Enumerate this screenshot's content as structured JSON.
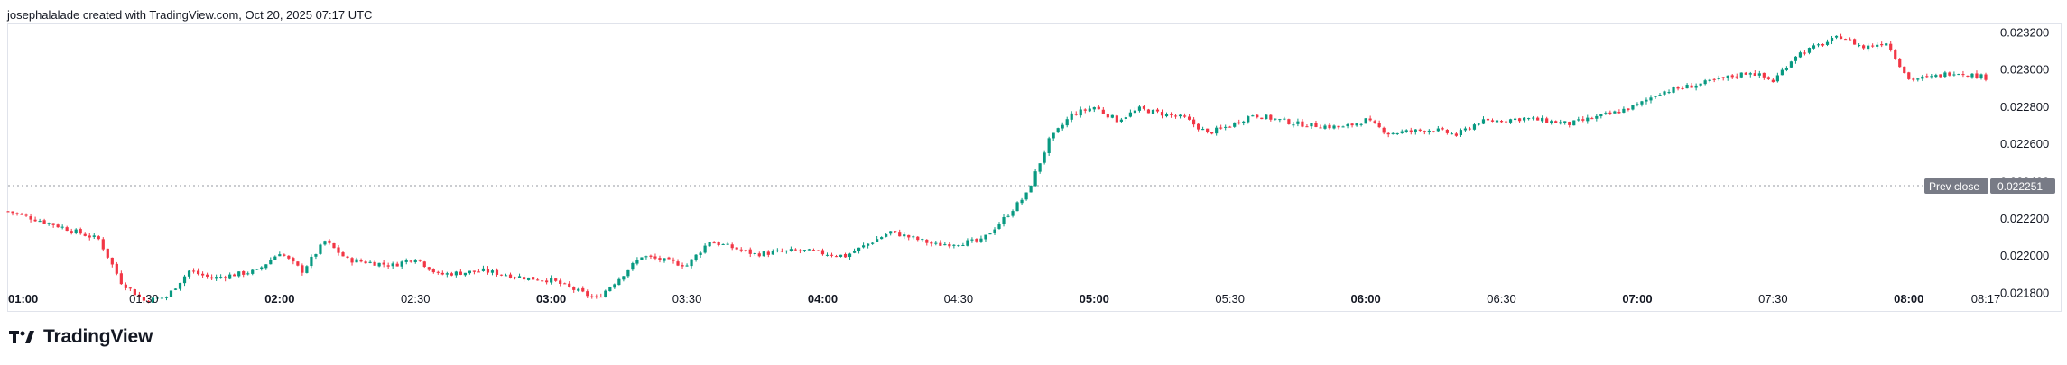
{
  "header": {
    "attribution": "josephalalade created with TradingView.com, Oct 20, 2025 07:17 UTC"
  },
  "brand": {
    "name": "TradingView"
  },
  "colors": {
    "up": "#089981",
    "down": "#f23645",
    "prev_close_badge": "#787b86",
    "grid_border": "#e0e3eb"
  },
  "chart_data": {
    "type": "candlestick",
    "x_ticks": [
      {
        "label": "01:00",
        "bold": true
      },
      {
        "label": "01:30",
        "bold": false
      },
      {
        "label": "02:00",
        "bold": true
      },
      {
        "label": "02:30",
        "bold": false
      },
      {
        "label": "03:00",
        "bold": true
      },
      {
        "label": "03:30",
        "bold": false
      },
      {
        "label": "04:00",
        "bold": true
      },
      {
        "label": "04:30",
        "bold": false
      },
      {
        "label": "05:00",
        "bold": true
      },
      {
        "label": "05:30",
        "bold": false
      },
      {
        "label": "06:00",
        "bold": true
      },
      {
        "label": "06:30",
        "bold": false
      },
      {
        "label": "07:00",
        "bold": true
      },
      {
        "label": "07:30",
        "bold": false
      },
      {
        "label": "08:00",
        "bold": true
      },
      {
        "label": "08:17",
        "bold": false
      }
    ],
    "y_ticks": [
      "0.023200",
      "0.023000",
      "0.022800",
      "0.022600",
      "0.022400",
      "0.022200",
      "0.022000",
      "0.021800"
    ],
    "y_range": [
      0.0217,
      0.02325
    ],
    "prev_close": {
      "label": "Prev close",
      "value": "0.022251"
    },
    "close_path": [
      [
        "01:00",
        0.02224
      ],
      [
        "01:10",
        0.02217
      ],
      [
        "01:20",
        0.02209
      ],
      [
        "01:25",
        0.02186
      ],
      [
        "01:30",
        0.02176
      ],
      [
        "01:35",
        0.02178
      ],
      [
        "01:40",
        0.02192
      ],
      [
        "01:45",
        0.02188
      ],
      [
        "01:55",
        0.02192
      ],
      [
        "02:00",
        0.02202
      ],
      [
        "02:05",
        0.02192
      ],
      [
        "02:10",
        0.02208
      ],
      [
        "02:15",
        0.02198
      ],
      [
        "02:25",
        0.02195
      ],
      [
        "02:30",
        0.02199
      ],
      [
        "02:35",
        0.0219
      ],
      [
        "02:45",
        0.02192
      ],
      [
        "02:55",
        0.02188
      ],
      [
        "03:00",
        0.02187
      ],
      [
        "03:05",
        0.02182
      ],
      [
        "03:10",
        0.02177
      ],
      [
        "03:15",
        0.02188
      ],
      [
        "03:20",
        0.022
      ],
      [
        "03:30",
        0.02195
      ],
      [
        "03:35",
        0.02208
      ],
      [
        "03:45",
        0.02201
      ],
      [
        "03:55",
        0.02203
      ],
      [
        "04:05",
        0.022
      ],
      [
        "04:15",
        0.02213
      ],
      [
        "04:25",
        0.02206
      ],
      [
        "04:35",
        0.02208
      ],
      [
        "04:40",
        0.0222
      ],
      [
        "04:45",
        0.02233
      ],
      [
        "04:50",
        0.02262
      ],
      [
        "04:55",
        0.02276
      ],
      [
        "05:00",
        0.0228
      ],
      [
        "05:05",
        0.02273
      ],
      [
        "05:10",
        0.02279
      ],
      [
        "05:20",
        0.02274
      ],
      [
        "05:25",
        0.02266
      ],
      [
        "05:30",
        0.0227
      ],
      [
        "05:35",
        0.02276
      ],
      [
        "05:45",
        0.02271
      ],
      [
        "05:55",
        0.02269
      ],
      [
        "06:00",
        0.02273
      ],
      [
        "06:05",
        0.02266
      ],
      [
        "06:15",
        0.02268
      ],
      [
        "06:20",
        0.02265
      ],
      [
        "06:25",
        0.02272
      ],
      [
        "06:35",
        0.02274
      ],
      [
        "06:45",
        0.02271
      ],
      [
        "06:55",
        0.02277
      ],
      [
        "07:00",
        0.02281
      ],
      [
        "07:05",
        0.02288
      ],
      [
        "07:15",
        0.02293
      ],
      [
        "07:25",
        0.02299
      ],
      [
        "07:30",
        0.02294
      ],
      [
        "07:35",
        0.02308
      ],
      [
        "07:45",
        0.02318
      ],
      [
        "07:50",
        0.02312
      ],
      [
        "07:55",
        0.02315
      ],
      [
        "08:00",
        0.02295
      ],
      [
        "08:05",
        0.02296
      ],
      [
        "08:10",
        0.02299
      ],
      [
        "08:17",
        0.02296
      ]
    ]
  }
}
